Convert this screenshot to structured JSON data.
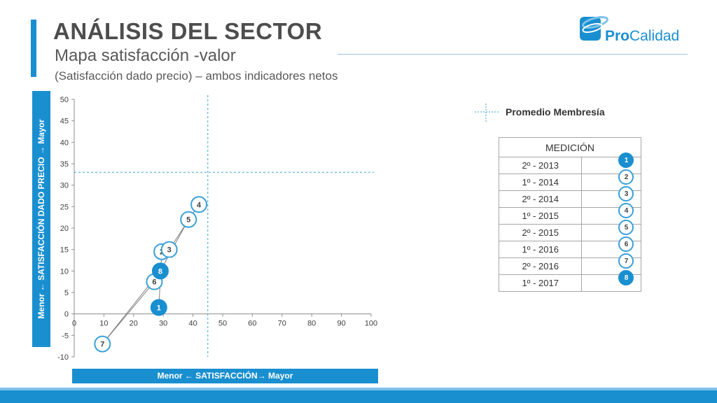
{
  "header": {
    "title": "ANÁLISIS DEL SECTOR",
    "subtitle": "Mapa satisfacción -valor",
    "note": "(Satisfacción dado precio) – ambos indicadores netos"
  },
  "logo": {
    "part1": "Pro",
    "part2": "Calidad"
  },
  "axes": {
    "y_label": "Menor  ← SATISFACCIÓN DADO PRECIO  → Mayor",
    "x_label": "Menor  ← SATISFACCIÓN→ Mayor"
  },
  "legend": {
    "label": "Promedio Membresía"
  },
  "table": {
    "header": "MEDICIÓN",
    "rows": [
      {
        "label": "2º - 2013",
        "marker": "1",
        "filled": true
      },
      {
        "label": "1º - 2014",
        "marker": "2",
        "filled": false
      },
      {
        "label": "2º - 2014",
        "marker": "3",
        "filled": false
      },
      {
        "label": "1º - 2015",
        "marker": "4",
        "filled": false
      },
      {
        "label": "2º - 2015",
        "marker": "5",
        "filled": false
      },
      {
        "label": "1º - 2016",
        "marker": "6",
        "filled": false
      },
      {
        "label": "2º - 2016",
        "marker": "7",
        "filled": false
      },
      {
        "label": "1º - 2017",
        "marker": "8",
        "filled": true
      }
    ]
  },
  "colors": {
    "accent": "#1a8fd0",
    "marker_border": "#3aa0d8",
    "line": "#7f7f7f"
  },
  "chart_data": {
    "type": "scatter",
    "xlim": [
      0,
      100
    ],
    "ylim": [
      -10,
      50
    ],
    "x_ticks": [
      "0",
      "10",
      "20",
      "30",
      "40",
      "50",
      "60",
      "70",
      "80",
      "90",
      "100"
    ],
    "y_ticks": [
      "50",
      "45",
      "40",
      "35",
      "30",
      "25",
      "20",
      "15",
      "10",
      "5",
      "0",
      "-5",
      "-10"
    ],
    "grid": false,
    "reference_lines": {
      "x": 45,
      "y": 33
    },
    "points": [
      {
        "label": "1",
        "x": 28.5,
        "y": 1.5,
        "filled": true
      },
      {
        "label": "2",
        "x": 29.5,
        "y": 14.5,
        "filled": false
      },
      {
        "label": "3",
        "x": 32,
        "y": 15,
        "filled": false
      },
      {
        "label": "4",
        "x": 42,
        "y": 25.5,
        "filled": false
      },
      {
        "label": "5",
        "x": 38.5,
        "y": 22,
        "filled": false
      },
      {
        "label": "6",
        "x": 27,
        "y": 7.5,
        "filled": false
      },
      {
        "label": "7",
        "x": 9.5,
        "y": -7,
        "filled": false
      },
      {
        "label": "8",
        "x": 29,
        "y": 10,
        "filled": true
      }
    ]
  }
}
